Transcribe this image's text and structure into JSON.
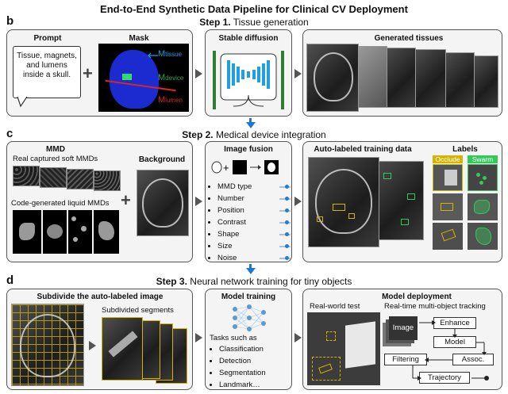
{
  "title": "End-to-End Synthetic Data Pipeline for Clinical CV Deployment",
  "step1": {
    "letter": "b",
    "step_label": "Step 1.",
    "step_text": " Tissue generation",
    "prompt_title": "Prompt",
    "prompt_text": "Tissue, magnets, and lumens inside a skull.",
    "mask_title": "Mask",
    "m_tissue": "M",
    "m_tissue_sub": "tissue",
    "m_device": "M",
    "m_device_sub": "device",
    "m_lumen": "M",
    "m_lumen_sub": "lumen",
    "stable_diffusion": "Stable diffusion",
    "generated_tissues": "Generated tissues"
  },
  "step2": {
    "letter": "c",
    "step_label": "Step 2.",
    "step_text": " Medical device integration",
    "mmd_title": "MMD",
    "real_caption": "Real captured soft MMDs",
    "code_caption": "Code-generated liquid MMDs",
    "background_title": "Background",
    "image_fusion": "Image fusion",
    "fusion_items": [
      "MMD type",
      "Number",
      "Position",
      "Contrast",
      "Shape",
      "Size",
      "Noise"
    ],
    "auto_labeled": "Auto-labeled training data",
    "labels_title": "Labels",
    "occlude": "Occlude",
    "swarm": "Swarm"
  },
  "step3": {
    "letter": "d",
    "step_label": "Step 3.",
    "step_text": " Neural network training for tiny objects",
    "subdivide": "Subdivide the auto-labeled image",
    "subdivided_segments": "Subdivided segments",
    "model_training": "Model training",
    "tasks_title": "Tasks such as",
    "tasks": [
      "Classification",
      "Detection",
      "Segmentation",
      "Landmark…"
    ],
    "model_deployment": "Model deployment",
    "real_world_test": "Real-world test",
    "realtime_tracking": "Real-time multi-object tracking",
    "image_label": "Image",
    "enhance": "Enhance",
    "model": "Model",
    "assoc": "Assoc.",
    "filtering": "Filtering",
    "trajectory": "Trajectory"
  },
  "colors": {
    "tissue": "#1e9fe0",
    "device": "#2fa84f",
    "lumen": "#d62728",
    "occlude": "#d4b400",
    "swarm": "#34c759",
    "arrow_blue": "#1f77d0"
  }
}
